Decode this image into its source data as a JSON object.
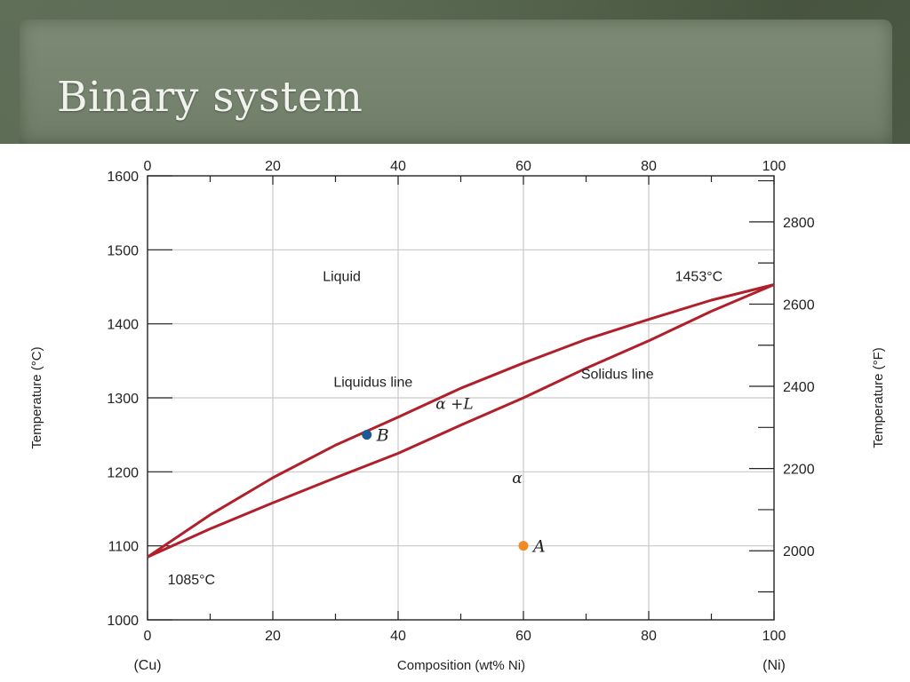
{
  "slide": {
    "title": "Binary system"
  },
  "chart_data": {
    "type": "line",
    "title": "",
    "xlabel": "Composition (wt% Ni)",
    "ylabel_left": "Temperature (°C)",
    "ylabel_right": "Temperature (°F)",
    "xlim": [
      0,
      100
    ],
    "ylim": [
      1000,
      1600
    ],
    "right_axis_ticks": [
      2000,
      2200,
      2400,
      2600,
      2800
    ],
    "x_ticks": [
      0,
      20,
      40,
      60,
      80,
      100
    ],
    "y_ticks": [
      1000,
      1100,
      1200,
      1300,
      1400,
      1500,
      1600
    ],
    "x_end_labels": {
      "left": "(Cu)",
      "right": "(Ni)"
    },
    "grid": true,
    "line_color": "#b0202a",
    "series": [
      {
        "name": "Liquidus line",
        "x": [
          0,
          10,
          20,
          30,
          40,
          50,
          60,
          70,
          80,
          90,
          100
        ],
        "y": [
          1085,
          1142,
          1192,
          1236,
          1274,
          1313,
          1347,
          1379,
          1406,
          1432,
          1453
        ]
      },
      {
        "name": "Solidus line",
        "x": [
          0,
          10,
          20,
          30,
          40,
          50,
          60,
          70,
          80,
          90,
          100
        ],
        "y": [
          1085,
          1123,
          1158,
          1192,
          1225,
          1263,
          1300,
          1340,
          1377,
          1417,
          1453
        ]
      }
    ],
    "points": [
      {
        "label": "B",
        "x": 35,
        "y": 1250,
        "color": "#1b5a96"
      },
      {
        "label": "A",
        "x": 60,
        "y": 1100,
        "color": "#f08a24"
      }
    ],
    "annotations": [
      {
        "text": "Liquid",
        "x": 31,
        "y": 1465
      },
      {
        "text": "1453°C",
        "x": 88,
        "y": 1465
      },
      {
        "text": "Liquidus line",
        "x": 36,
        "y": 1322
      },
      {
        "text": "Solidus line",
        "x": 75,
        "y": 1333
      },
      {
        "text": "α +L",
        "x": 49,
        "y": 1292,
        "italic": true
      },
      {
        "text": "α",
        "x": 59,
        "y": 1192,
        "italic": true
      },
      {
        "text": "1085°C",
        "x": 7,
        "y": 1055
      }
    ]
  }
}
